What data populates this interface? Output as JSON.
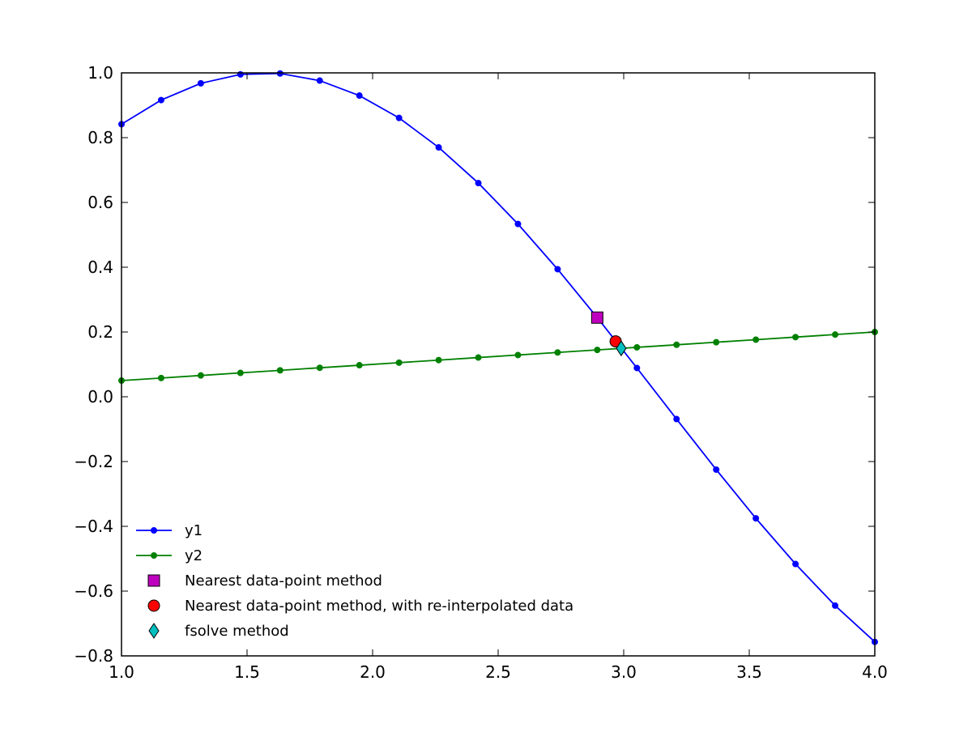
{
  "chart_data": {
    "type": "line",
    "title": "",
    "xlabel": "",
    "ylabel": "",
    "xlim": [
      1.0,
      4.0
    ],
    "ylim": [
      -0.8,
      1.0
    ],
    "grid": false,
    "legend_placement": "lower-left",
    "x_ticks": [
      "1.0",
      "1.5",
      "2.0",
      "2.5",
      "3.0",
      "3.5",
      "4.0"
    ],
    "x_tick_values": [
      1.0,
      1.5,
      2.0,
      2.5,
      3.0,
      3.5,
      4.0
    ],
    "y_ticks": [
      "−0.8",
      "−0.6",
      "−0.4",
      "−0.2",
      "0.0",
      "0.2",
      "0.4",
      "0.6",
      "0.8",
      "1.0"
    ],
    "y_tick_values": [
      -0.8,
      -0.6,
      -0.4,
      -0.2,
      0.0,
      0.2,
      0.4,
      0.6,
      0.8,
      1.0
    ],
    "x": [
      1.0,
      1.1579,
      1.3158,
      1.4737,
      1.6316,
      1.7895,
      1.9474,
      2.1053,
      2.2632,
      2.4211,
      2.5789,
      2.7368,
      2.8947,
      3.0526,
      3.2105,
      3.3684,
      3.5263,
      3.6842,
      3.8421,
      4.0
    ],
    "series": [
      {
        "name": "y1",
        "color": "#0000ff",
        "marker": "circle",
        "values": [
          0.8415,
          0.916,
          0.9678,
          0.9953,
          0.9981,
          0.9761,
          0.9299,
          0.8609,
          0.7699,
          0.6598,
          0.5335,
          0.3938,
          0.2444,
          0.0889,
          -0.0688,
          -0.2249,
          -0.3753,
          -0.5163,
          -0.6448,
          -0.7568
        ]
      },
      {
        "name": "y2",
        "color": "#008000",
        "marker": "circle",
        "values": [
          0.05,
          0.0579,
          0.0658,
          0.0737,
          0.0816,
          0.0895,
          0.0974,
          0.1053,
          0.1132,
          0.1211,
          0.1289,
          0.1368,
          0.1447,
          0.1526,
          0.1605,
          0.1684,
          0.1763,
          0.1842,
          0.1921,
          0.2
        ]
      }
    ],
    "points": [
      {
        "name": "Nearest data-point method",
        "x": 2.8947,
        "y": 0.2444,
        "marker": "square",
        "color": "#bf00bf"
      },
      {
        "name": "Nearest data-point method, with re-interpolated data",
        "x": 2.968,
        "y": 0.171,
        "marker": "circle",
        "color": "#ff0000"
      },
      {
        "name": "fsolve method",
        "x": 2.99,
        "y": 0.1495,
        "marker": "diamond",
        "color": "#00bfbf"
      }
    ]
  }
}
